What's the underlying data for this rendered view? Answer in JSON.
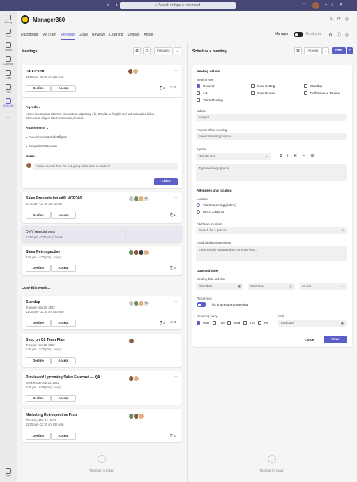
{
  "topbar": {
    "nav": "‹ ›",
    "search_placeholder": "Search or type a command",
    "more": "···"
  },
  "rail": [
    {
      "label": "Activity"
    },
    {
      "label": "Chat"
    },
    {
      "label": "Teams"
    },
    {
      "label": "Calendar"
    },
    {
      "label": "Calls"
    },
    {
      "label": "Files"
    },
    {
      "label": "M360-MG"
    }
  ],
  "rail_more": "···",
  "rail_apps": "Apps",
  "app": {
    "title": "Manager360",
    "tabs": [
      "Dashboard",
      "My Team",
      "Meetings",
      "Goals",
      "Reviews",
      "Learning",
      "Settings",
      "About"
    ],
    "active_tab": "Meetings",
    "role_on": "Manager",
    "role_off": "Employee"
  },
  "left": {
    "title": "Meetings",
    "filter": "this week",
    "later_label": "Later this week..."
  },
  "cards": {
    "ux": {
      "title": "UX Kickoff",
      "time": "11:00 am - 11:30 am (30 min)",
      "decline": "Decline",
      "accept": "Accept",
      "attach_count": "2",
      "note_count": "1",
      "agenda_label": "Agenda",
      "agenda_text": "Lorem ipsum dolor sit amet, consectetur adipiscing elit. Gravida in fringilla sed sed massa leo tellus. Elementum aliquet lorem commodo, semper.",
      "attachments_label": "Attachments",
      "files": [
        "Requirements & Kick-Off.pptx",
        "Competitor Matrix.xlsx"
      ],
      "notes_label": "Notes",
      "note_text": "Please record this, I'm not going to be able to make it!",
      "close": "Close"
    },
    "sales": {
      "title": "Sales Presentation with MGR360",
      "time": "10:30 am - 11:30 am (1 hour)",
      "decline": "Decline",
      "accept": "Accept",
      "extra": "+3",
      "attach_count": "1"
    },
    "dmv": {
      "title": "DMV Appointment",
      "time": "12:00 pm - 2:00 pm (2 hours)"
    },
    "retro": {
      "title": "Sales Retrospective",
      "time": "3:00 pm - 4:00 pm (1 hour)",
      "decline": "Decline",
      "accept": "Accept",
      "attach_count": "3"
    },
    "standup": {
      "title": "Standup",
      "date": "Tuesday Mar 22, 2022",
      "time": "11:00 am - 11:30 am (30 min)",
      "decline": "Decline",
      "accept": "Accept",
      "extra": "+3",
      "attach_count": "2",
      "note_count": "1"
    },
    "sync": {
      "title": "Sync on Q2 Team Plan",
      "date": "Tuesday Mar 22, 2022",
      "time": "1:00 pm - 2:00 pm (1 hour)",
      "decline": "Decline",
      "accept": "Accept"
    },
    "preview": {
      "title": "Preview of Upcoming Sales Forecast — QA",
      "date": "Wednesday Mar 23, 2022",
      "time": "2:00 pm - 3:00 pm (1 hour)",
      "decline": "Decline",
      "accept": "Accept"
    },
    "mretro": {
      "title": "Marketing Retrospective Prep",
      "date": "Thursday Mar 24, 2022",
      "time": "11:00 am - 11:30 am (30 min)",
      "decline": "Decline",
      "accept": "Accept",
      "attach_count": "2"
    }
  },
  "empty_text": "That's all for today!",
  "right": {
    "title": "Schedule a meeting",
    "actions": "Actions",
    "new": "New",
    "details_label": "Meeting details",
    "type_label": "Meeting type",
    "types": [
      {
        "label": "General",
        "checked": true
      },
      {
        "label": "Goal Setting",
        "checked": false
      },
      {
        "label": "Standup",
        "checked": false
      },
      {
        "label": "1:1",
        "checked": false
      },
      {
        "label": "Goal Review",
        "checked": false
      },
      {
        "label": "Performance Review",
        "checked": false
      },
      {
        "label": "Team Meeting",
        "checked": false
      }
    ],
    "subject_label": "Subject",
    "subject_placeholder": "Subject",
    "purpose_label": "Purpose of the meeting",
    "purpose_placeholder": "Select meeting purpose",
    "agenda_label": "Agenda",
    "text_style": "Normal text",
    "agenda_placeholder": "Type meeting agenda",
    "attendees_header": "Attendees and location",
    "location_label": "Location",
    "loc_options": [
      "Teams meeting (online)",
      "Street Address"
    ],
    "team_label": "Add Team members",
    "team_placeholder": "Search for a person",
    "email_label": "Email additional attendees",
    "email_placeholder": "Enter emails separated by commas here...",
    "datetime_header": "Date and time",
    "date_label": "Meeting date and time",
    "start_date": "Start date",
    "start_time": "Start time",
    "duration": "30 min",
    "recurrence_label": "Recurrence",
    "recurrence_text": "This is a recurring meeting",
    "every_label": "Recurring every",
    "until_label": "Until",
    "days": [
      {
        "label": "Mon",
        "checked": true
      },
      {
        "label": "Tue",
        "checked": false
      },
      {
        "label": "Wed",
        "checked": false
      },
      {
        "label": "Thu",
        "checked": false
      },
      {
        "label": "Fri",
        "checked": false
      }
    ],
    "end_date": "End date",
    "cancel": "Cancel",
    "save": "Save"
  },
  "colors": {
    "accent": "#5b5fc7",
    "topbar": "#464775"
  }
}
